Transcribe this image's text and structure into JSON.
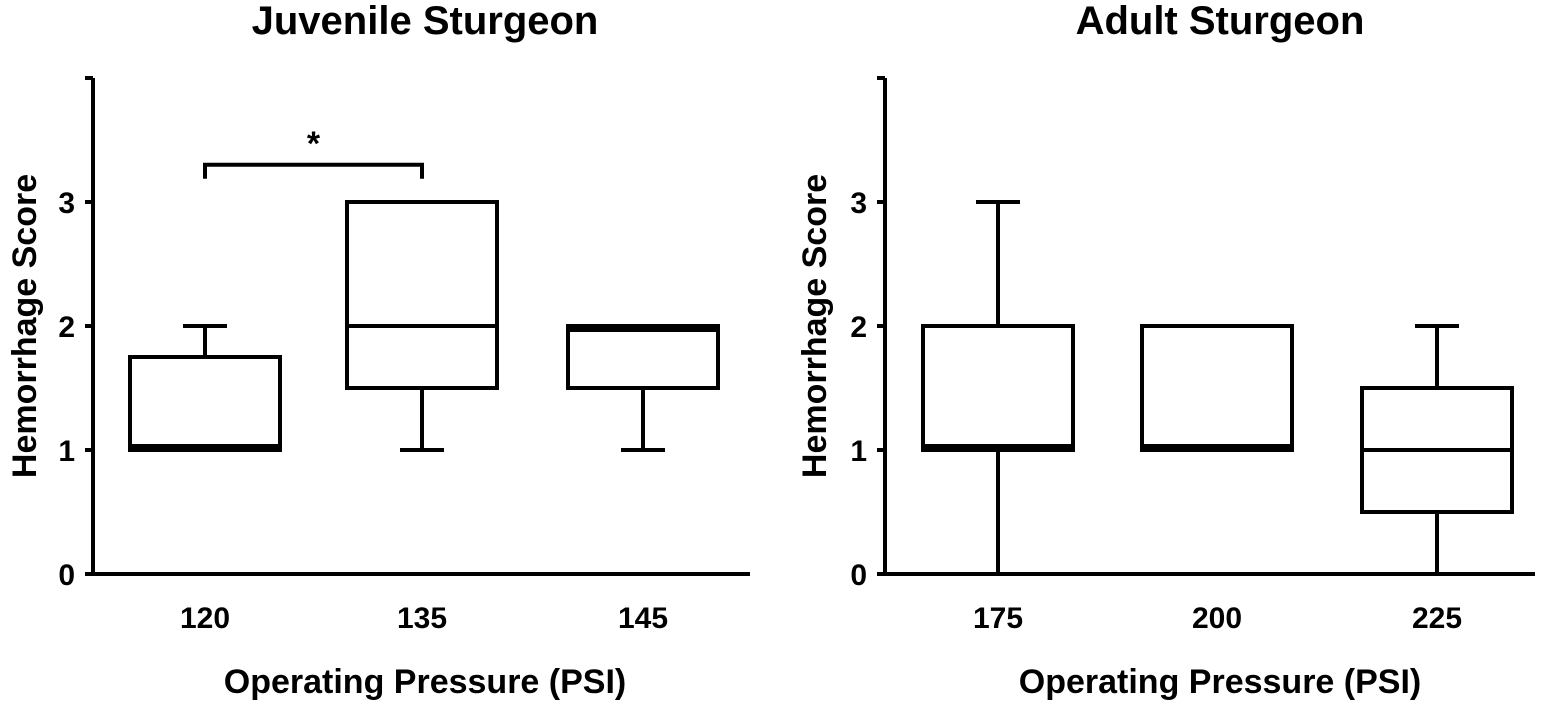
{
  "chart_data": [
    {
      "type": "boxplot",
      "title": "Juvenile Sturgeon",
      "xlabel": "Operating Pressure (PSI)",
      "ylabel": "Hemorrhage Score",
      "ylim": [
        0,
        4
      ],
      "yticks": [
        0,
        1,
        2,
        3
      ],
      "categories": [
        "120",
        "135",
        "145"
      ],
      "boxes": [
        {
          "category": "120",
          "min": 1,
          "q1": 1,
          "median": 1,
          "q3": 1.75,
          "max": 2
        },
        {
          "category": "135",
          "min": 1,
          "q1": 1.5,
          "median": 2,
          "q3": 3,
          "max": 3
        },
        {
          "category": "145",
          "min": 1,
          "q1": 1.5,
          "median": 2,
          "q3": 2,
          "max": 2
        }
      ],
      "annotations": [
        {
          "type": "significance",
          "from": "120",
          "to": "135",
          "level": 3.3,
          "label": "*"
        }
      ]
    },
    {
      "type": "boxplot",
      "title": "Adult Sturgeon",
      "xlabel": "Operating Pressure (PSI)",
      "ylabel": "Hemorrhage Score",
      "ylim": [
        0,
        4
      ],
      "yticks": [
        0,
        1,
        2,
        3
      ],
      "categories": [
        "175",
        "200",
        "225"
      ],
      "boxes": [
        {
          "category": "175",
          "min": 0,
          "q1": 1,
          "median": 1,
          "q3": 2,
          "max": 3
        },
        {
          "category": "200",
          "min": 1,
          "q1": 1,
          "median": 1,
          "q3": 2,
          "max": 2
        },
        {
          "category": "225",
          "min": 0,
          "q1": 0.5,
          "median": 1,
          "q3": 1.5,
          "max": 2
        }
      ],
      "annotations": []
    }
  ]
}
